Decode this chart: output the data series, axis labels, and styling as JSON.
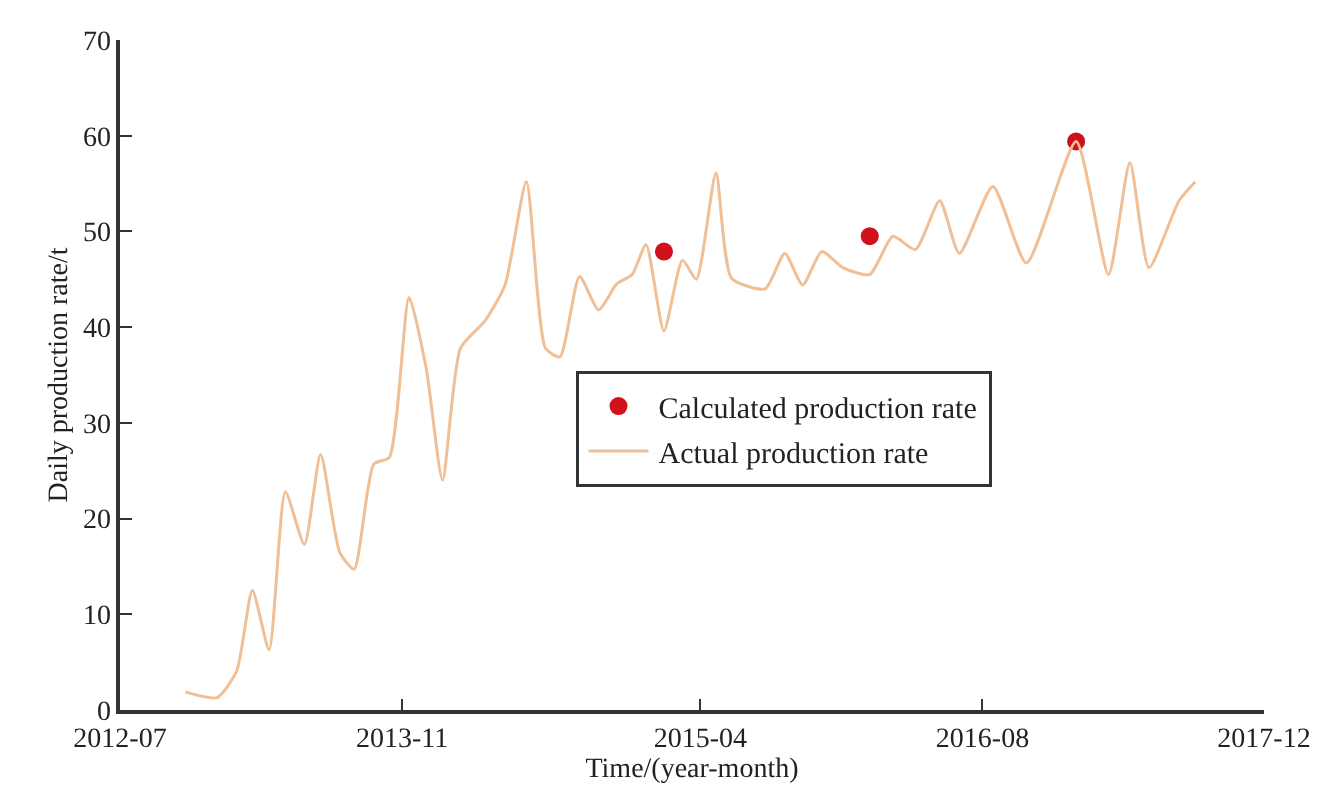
{
  "chart_data": {
    "type": "line",
    "xlabel": "Time/(year-month)",
    "ylabel": "Daily production rate/t",
    "xlim": [
      "2012-07",
      "2017-12"
    ],
    "xticks": [
      "2012-07",
      "2013-11",
      "2015-04",
      "2016-08",
      "2017-12"
    ],
    "ylim": [
      0,
      70
    ],
    "yticks": [
      0,
      10,
      20,
      30,
      40,
      50,
      60,
      70
    ],
    "legend": "center",
    "series": [
      {
        "name": "Calculated production rate",
        "type": "scatter",
        "marker": "circle",
        "color": "#d0101a",
        "x": [
          "2015-01-28",
          "2016-01-19",
          "2017-01-10"
        ],
        "values": [
          47.9,
          49.5,
          59.4
        ]
      },
      {
        "name": "Actual production rate",
        "color": "#f0bf95",
        "line_style": "solid",
        "x": [
          "2012-10-22",
          "2012-12-16",
          "2013-01-19",
          "2013-02-15",
          "2013-03-16",
          "2013-04-13",
          "2013-05-16",
          "2013-06-13",
          "2013-07-16",
          "2013-08-10",
          "2013-09-13",
          "2013-10-10",
          "2013-11-13",
          "2013-12-13",
          "2014-01-10",
          "2014-02-10",
          "2014-03-25",
          "2014-04-28",
          "2014-06-04",
          "2014-07-07",
          "2014-08-01",
          "2014-09-04",
          "2014-10-07",
          "2014-11-07",
          "2014-12-04",
          "2014-12-28",
          "2015-01-28",
          "2015-03-01",
          "2015-03-25",
          "2015-04-28",
          "2015-05-25",
          "2015-07-22",
          "2015-08-25",
          "2015-09-25",
          "2015-10-28",
          "2015-12-04",
          "2016-01-19",
          "2016-02-28",
          "2016-04-07",
          "2016-05-19",
          "2016-06-22",
          "2016-08-19",
          "2016-10-16",
          "2017-01-10",
          "2017-03-07",
          "2017-04-13",
          "2017-05-16",
          "2017-07-07",
          "2017-08-04"
        ],
        "values": [
          1.9,
          1.3,
          4.1,
          12.5,
          6.3,
          22.8,
          17.3,
          26.7,
          16.5,
          14.7,
          25.7,
          26.4,
          43.1,
          35.6,
          24.0,
          37.8,
          40.7,
          44.4,
          55.2,
          37.8,
          36.9,
          45.3,
          41.8,
          44.5,
          45.5,
          48.6,
          39.6,
          47.0,
          45.0,
          56.1,
          45.1,
          44.0,
          47.7,
          44.4,
          47.9,
          46.2,
          45.5,
          49.5,
          48.1,
          53.2,
          47.7,
          54.7,
          46.7,
          59.4,
          45.5,
          57.2,
          46.2,
          53.2,
          55.2
        ]
      }
    ]
  }
}
